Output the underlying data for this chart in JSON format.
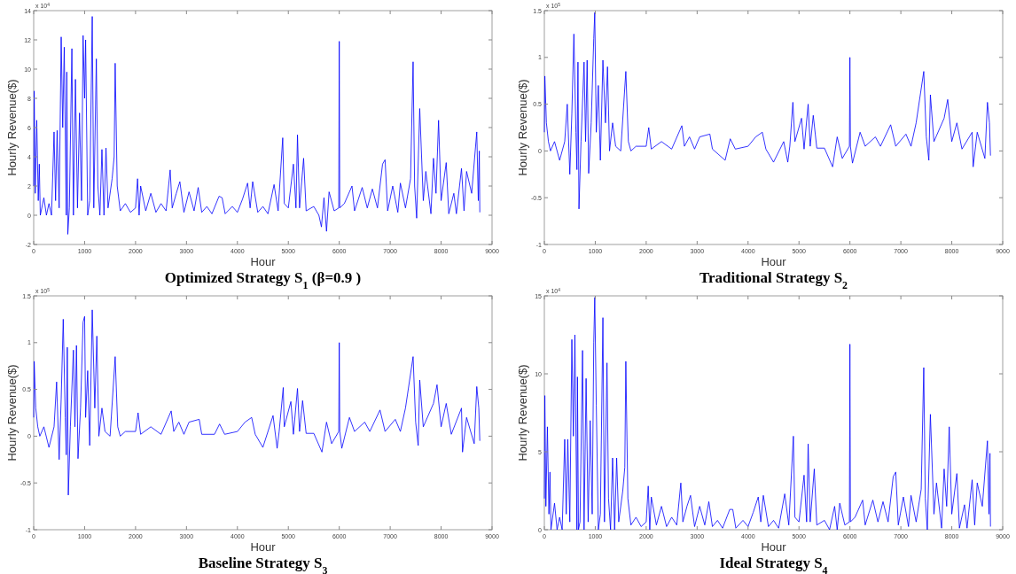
{
  "chart_data": [
    {
      "type": "line",
      "title": "Optimized Strategy S$_{1}$ (β=0.9 )",
      "xlabel": "Hour",
      "ylabel": "Hourly Revenue($)",
      "annotations": [
        "x 10$^{4}$"
      ],
      "xlim": [
        0,
        9000
      ],
      "xticks": [
        0,
        1000,
        2000,
        3000,
        4000,
        5000,
        6000,
        7000,
        8000,
        9000
      ],
      "ylim": [
        -2,
        14
      ],
      "yticks": [
        -2,
        0,
        2,
        4,
        6,
        8,
        10,
        12,
        14
      ],
      "series": [
        {
          "color": "#0000ff",
          "x": [
            0,
            10,
            30,
            60,
            90,
            110,
            130,
            200,
            250,
            300,
            350,
            400,
            430,
            460,
            500,
            540,
            570,
            600,
            640,
            650,
            670,
            700,
            750,
            780,
            820,
            860,
            900,
            940,
            970,
            1000,
            1020,
            1060,
            1100,
            1150,
            1180,
            1230,
            1260,
            1300,
            1340,
            1380,
            1420,
            1460,
            1540,
            1580,
            1600,
            1640,
            1700,
            1800,
            1900,
            2000,
            2040,
            2070,
            2100,
            2200,
            2300,
            2400,
            2500,
            2600,
            2680,
            2720,
            2800,
            2870,
            2950,
            3050,
            3150,
            3230,
            3300,
            3400,
            3500,
            3640,
            3700,
            3760,
            3900,
            4000,
            4100,
            4200,
            4250,
            4300,
            4400,
            4500,
            4600,
            4720,
            4800,
            4890,
            4920,
            5000,
            5100,
            5150,
            5180,
            5220,
            5300,
            5350,
            5500,
            5600,
            5650,
            5700,
            5750,
            5800,
            5900,
            5990,
            6000,
            6010,
            6100,
            6250,
            6300,
            6450,
            6550,
            6650,
            6750,
            6850,
            6900,
            6950,
            7050,
            7150,
            7200,
            7300,
            7400,
            7450,
            7480,
            7520,
            7580,
            7650,
            7700,
            7800,
            7850,
            7900,
            7950,
            8000,
            8100,
            8150,
            8250,
            8300,
            8400,
            8450,
            8500,
            8600,
            8700,
            8730,
            8750,
            8760
          ],
          "values": [
            2,
            8.5,
            1.5,
            6.5,
            1,
            3.5,
            0,
            1.2,
            0,
            0.8,
            0,
            5.7,
            1,
            5.8,
            0.5,
            12.2,
            6,
            11.5,
            0,
            9.8,
            -1.3,
            0.5,
            11.4,
            0,
            9.3,
            0.5,
            7,
            1,
            12.3,
            8,
            12,
            0,
            1,
            13.6,
            0.5,
            10.7,
            2,
            0,
            4.5,
            0,
            4.6,
            0.5,
            2.5,
            4,
            10.4,
            2,
            0.3,
            0.8,
            0.2,
            0.5,
            2.5,
            0,
            2,
            0.3,
            1.5,
            0.2,
            0.8,
            0.3,
            3.1,
            0.5,
            1.5,
            2.3,
            0.2,
            1.6,
            0.3,
            1.9,
            0.2,
            0.6,
            0.1,
            1.3,
            1.2,
            0.1,
            0.6,
            0.2,
            1.1,
            2.2,
            0.5,
            2.3,
            0.2,
            0.6,
            0.1,
            2.1,
            0.3,
            5.3,
            0.8,
            0.5,
            3.5,
            0.5,
            5.5,
            0.5,
            3.9,
            0.3,
            0.6,
            0,
            -0.8,
            1.2,
            -1.1,
            1.6,
            0.3,
            0.5,
            11.9,
            0.5,
            0.8,
            2,
            0.3,
            1.9,
            0.5,
            1.8,
            0.5,
            3.5,
            3.8,
            0.3,
            2,
            0.2,
            2.2,
            0.5,
            2.5,
            10.5,
            2,
            -0.2,
            7.3,
            1,
            3,
            0.1,
            3.9,
            1.5,
            6.5,
            1,
            3.6,
            0.1,
            1.5,
            0.1,
            3.2,
            0.3,
            3,
            1.5,
            5.7,
            1,
            4.4,
            0.2
          ]
        }
      ]
    },
    {
      "type": "line",
      "title": "Traditional Strategy S$_{2}$",
      "xlabel": "Hour",
      "ylabel": "Hourly Revenue($)",
      "annotations": [
        "x 10$^{5}$"
      ],
      "xlim": [
        0,
        9000
      ],
      "xticks": [
        0,
        1000,
        2000,
        3000,
        4000,
        5000,
        6000,
        7000,
        8000,
        9000
      ],
      "ylim": [
        -1,
        1.5
      ],
      "yticks": [
        -1,
        -0.5,
        0,
        0.5,
        1,
        1.5
      ],
      "series": [
        {
          "color": "#0000ff",
          "x": [
            0,
            10,
            40,
            80,
            120,
            200,
            300,
            400,
            450,
            500,
            540,
            580,
            620,
            640,
            660,
            680,
            720,
            780,
            810,
            840,
            870,
            920,
            970,
            990,
            1020,
            1060,
            1100,
            1150,
            1200,
            1240,
            1280,
            1340,
            1400,
            1500,
            1600,
            1650,
            1700,
            1800,
            2000,
            2050,
            2100,
            2300,
            2500,
            2700,
            2750,
            2850,
            2950,
            3050,
            3250,
            3300,
            3550,
            3650,
            3750,
            4000,
            4150,
            4280,
            4350,
            4500,
            4700,
            4780,
            4820,
            4880,
            4920,
            5050,
            5100,
            5180,
            5220,
            5280,
            5350,
            5500,
            5660,
            5750,
            5850,
            5990,
            6000,
            6010,
            6050,
            6200,
            6300,
            6500,
            6600,
            6800,
            6900,
            7100,
            7200,
            7300,
            7450,
            7500,
            7550,
            7580,
            7650,
            7850,
            7920,
            8000,
            8100,
            8200,
            8400,
            8420,
            8500,
            8650,
            8700,
            8740,
            8760
          ],
          "values": [
            0.2,
            0.8,
            0.3,
            0.1,
            0,
            0.1,
            -0.1,
            0.1,
            0.5,
            -0.25,
            0.4,
            1.25,
            0.2,
            -0.2,
            0.95,
            -0.62,
            0.1,
            0.95,
            0.1,
            0.97,
            -0.24,
            0.3,
            1.2,
            1.48,
            0.2,
            0.7,
            -0.1,
            0.97,
            0.3,
            0.9,
            0,
            0.3,
            0.05,
            0,
            0.85,
            0.1,
            0,
            0.05,
            0.05,
            0.25,
            0.02,
            0.1,
            0.02,
            0.27,
            0.05,
            0.15,
            0.02,
            0.15,
            0.18,
            0.02,
            -0.1,
            0.13,
            0.02,
            0.05,
            0.15,
            0.2,
            0.02,
            -0.12,
            0.1,
            -0.12,
            0.05,
            0.52,
            0.1,
            0.35,
            0.02,
            0.5,
            0.05,
            0.38,
            0.03,
            0.03,
            -0.17,
            0.15,
            -0.08,
            0.05,
            1,
            0.05,
            -0.13,
            0.2,
            0.05,
            0.15,
            0.05,
            0.28,
            0.05,
            0.18,
            0.05,
            0.3,
            0.85,
            0.15,
            -0.1,
            0.6,
            0.1,
            0.35,
            0.55,
            0.1,
            0.3,
            0.02,
            0.2,
            -0.17,
            0.2,
            -0.08,
            0.52,
            0.3,
            -0.05
          ]
        }
      ]
    },
    {
      "type": "line",
      "title": "Baseline Strategy S$_{3}$",
      "xlabel": "Hour",
      "ylabel": "Hourly Revenue($)",
      "annotations": [
        "x 10$^{5}$"
      ],
      "xlim": [
        0,
        9000
      ],
      "xticks": [
        0,
        1000,
        2000,
        3000,
        4000,
        5000,
        6000,
        7000,
        8000,
        9000
      ],
      "ylim": [
        -1,
        1.5
      ],
      "yticks": [
        -1,
        -0.5,
        0,
        0.5,
        1,
        1.5
      ],
      "series": [
        {
          "color": "#0000ff",
          "x": [
            0,
            10,
            40,
            80,
            120,
            200,
            300,
            400,
            450,
            500,
            540,
            580,
            620,
            640,
            660,
            680,
            720,
            780,
            810,
            840,
            870,
            920,
            970,
            1000,
            1020,
            1060,
            1100,
            1150,
            1200,
            1240,
            1280,
            1340,
            1400,
            1500,
            1600,
            1650,
            1700,
            1800,
            2000,
            2050,
            2100,
            2300,
            2500,
            2700,
            2750,
            2850,
            2950,
            3050,
            3250,
            3300,
            3550,
            3650,
            3750,
            4000,
            4150,
            4280,
            4350,
            4500,
            4700,
            4780,
            4820,
            4900,
            4920,
            5050,
            5100,
            5180,
            5220,
            5280,
            5350,
            5500,
            5660,
            5750,
            5850,
            5990,
            6000,
            6010,
            6050,
            6200,
            6300,
            6500,
            6600,
            6800,
            6900,
            7100,
            7200,
            7300,
            7450,
            7500,
            7550,
            7580,
            7650,
            7850,
            7920,
            8000,
            8100,
            8200,
            8400,
            8420,
            8500,
            8650,
            8700,
            8740,
            8760
          ],
          "values": [
            0.2,
            0.8,
            0.3,
            0.1,
            0,
            0.1,
            -0.12,
            0.1,
            0.58,
            -0.25,
            0.4,
            1.25,
            0.2,
            -0.2,
            0.95,
            -0.63,
            0.1,
            0.92,
            0.1,
            0.97,
            -0.24,
            0.3,
            1.22,
            1.28,
            0.2,
            0.7,
            -0.1,
            1.35,
            0.3,
            1.07,
            0,
            0.3,
            0.05,
            0,
            0.85,
            0.1,
            0,
            0.05,
            0.05,
            0.25,
            0.02,
            0.1,
            0.02,
            0.27,
            0.05,
            0.15,
            0.02,
            0.15,
            0.18,
            0.02,
            0.02,
            0.13,
            0.02,
            0.05,
            0.15,
            0.2,
            0.02,
            -0.12,
            0.22,
            -0.13,
            0.05,
            0.52,
            0.1,
            0.37,
            0.02,
            0.51,
            0.05,
            0.38,
            0.03,
            0.03,
            -0.17,
            0.15,
            -0.08,
            0.05,
            1,
            0.05,
            -0.13,
            0.2,
            0.05,
            0.15,
            0.05,
            0.28,
            0.05,
            0.18,
            0.05,
            0.3,
            0.85,
            0.15,
            -0.1,
            0.6,
            0.1,
            0.35,
            0.55,
            0.1,
            0.35,
            0.02,
            0.3,
            -0.17,
            0.2,
            -0.08,
            0.53,
            0.3,
            -0.05
          ]
        }
      ]
    },
    {
      "type": "line",
      "title": "Ideal Strategy S$_{4}$",
      "xlabel": "Hour",
      "ylabel": "Hourly Revenue($)",
      "annotations": [
        "x 10$^{4}$"
      ],
      "xlim": [
        0,
        9000
      ],
      "xticks": [
        0,
        1000,
        2000,
        3000,
        4000,
        5000,
        6000,
        7000,
        8000,
        9000
      ],
      "ylim": [
        0,
        15
      ],
      "yticks": [
        0,
        5,
        10,
        15
      ],
      "series": [
        {
          "color": "#0000ff",
          "x": [
            0,
            10,
            30,
            60,
            90,
            110,
            130,
            200,
            250,
            300,
            350,
            400,
            430,
            460,
            500,
            540,
            570,
            600,
            640,
            650,
            670,
            700,
            750,
            780,
            820,
            860,
            900,
            940,
            970,
            990,
            1020,
            1060,
            1100,
            1150,
            1180,
            1230,
            1260,
            1300,
            1340,
            1380,
            1420,
            1460,
            1540,
            1580,
            1600,
            1640,
            1700,
            1800,
            1900,
            2000,
            2040,
            2070,
            2100,
            2200,
            2300,
            2400,
            2500,
            2600,
            2680,
            2720,
            2800,
            2870,
            2950,
            3050,
            3150,
            3230,
            3300,
            3400,
            3500,
            3640,
            3700,
            3760,
            3900,
            4000,
            4100,
            4200,
            4250,
            4300,
            4400,
            4500,
            4600,
            4720,
            4800,
            4890,
            4920,
            5000,
            5100,
            5150,
            5180,
            5220,
            5300,
            5350,
            5500,
            5600,
            5700,
            5750,
            5800,
            5900,
            5990,
            6000,
            6010,
            6100,
            6250,
            6300,
            6450,
            6550,
            6650,
            6750,
            6850,
            6900,
            6950,
            7050,
            7150,
            7200,
            7300,
            7400,
            7450,
            7480,
            7520,
            7580,
            7650,
            7700,
            7800,
            7850,
            7900,
            7950,
            8000,
            8100,
            8150,
            8250,
            8300,
            8400,
            8450,
            8500,
            8600,
            8700,
            8730,
            8750,
            8760
          ],
          "values": [
            2,
            8.6,
            1.5,
            6.6,
            1,
            3.7,
            0,
            1.7,
            0,
            0.8,
            0,
            5.8,
            1,
            5.8,
            0.5,
            12.2,
            6,
            12.5,
            0,
            9.8,
            0,
            0.5,
            11.5,
            0,
            9.7,
            0.5,
            7,
            1,
            12,
            14.9,
            8,
            0,
            1,
            13.6,
            0.5,
            10.7,
            2,
            0,
            4.6,
            0,
            4.6,
            0.5,
            2.5,
            4,
            10.8,
            2,
            0.3,
            0.8,
            0.2,
            0.5,
            2.8,
            0,
            2.1,
            0.3,
            1.5,
            0.2,
            0.8,
            0.3,
            3,
            0.5,
            1.5,
            2.2,
            0.2,
            1.5,
            0.3,
            1.8,
            0.2,
            0.6,
            0.1,
            1.3,
            1.3,
            0.1,
            0.6,
            0.2,
            1.1,
            2.1,
            0.5,
            2.2,
            0.2,
            0.6,
            0.1,
            2.3,
            0.3,
            6,
            0.8,
            0.5,
            3.5,
            0.5,
            5.5,
            0.5,
            3.9,
            0.3,
            0.6,
            0,
            1.5,
            0,
            1.7,
            0.3,
            0.5,
            11.9,
            0.5,
            0.8,
            1.9,
            0.3,
            1.9,
            0.5,
            1.8,
            0.5,
            3.4,
            3.7,
            0.3,
            2.1,
            0.2,
            2.2,
            0.5,
            2.6,
            10.4,
            2,
            0,
            7.4,
            1,
            3,
            0.1,
            3.9,
            1.5,
            6.6,
            1,
            3.6,
            0.1,
            1.6,
            0.1,
            3.2,
            0.3,
            3,
            1.5,
            5.7,
            1,
            4.9,
            0.2
          ]
        }
      ]
    }
  ]
}
